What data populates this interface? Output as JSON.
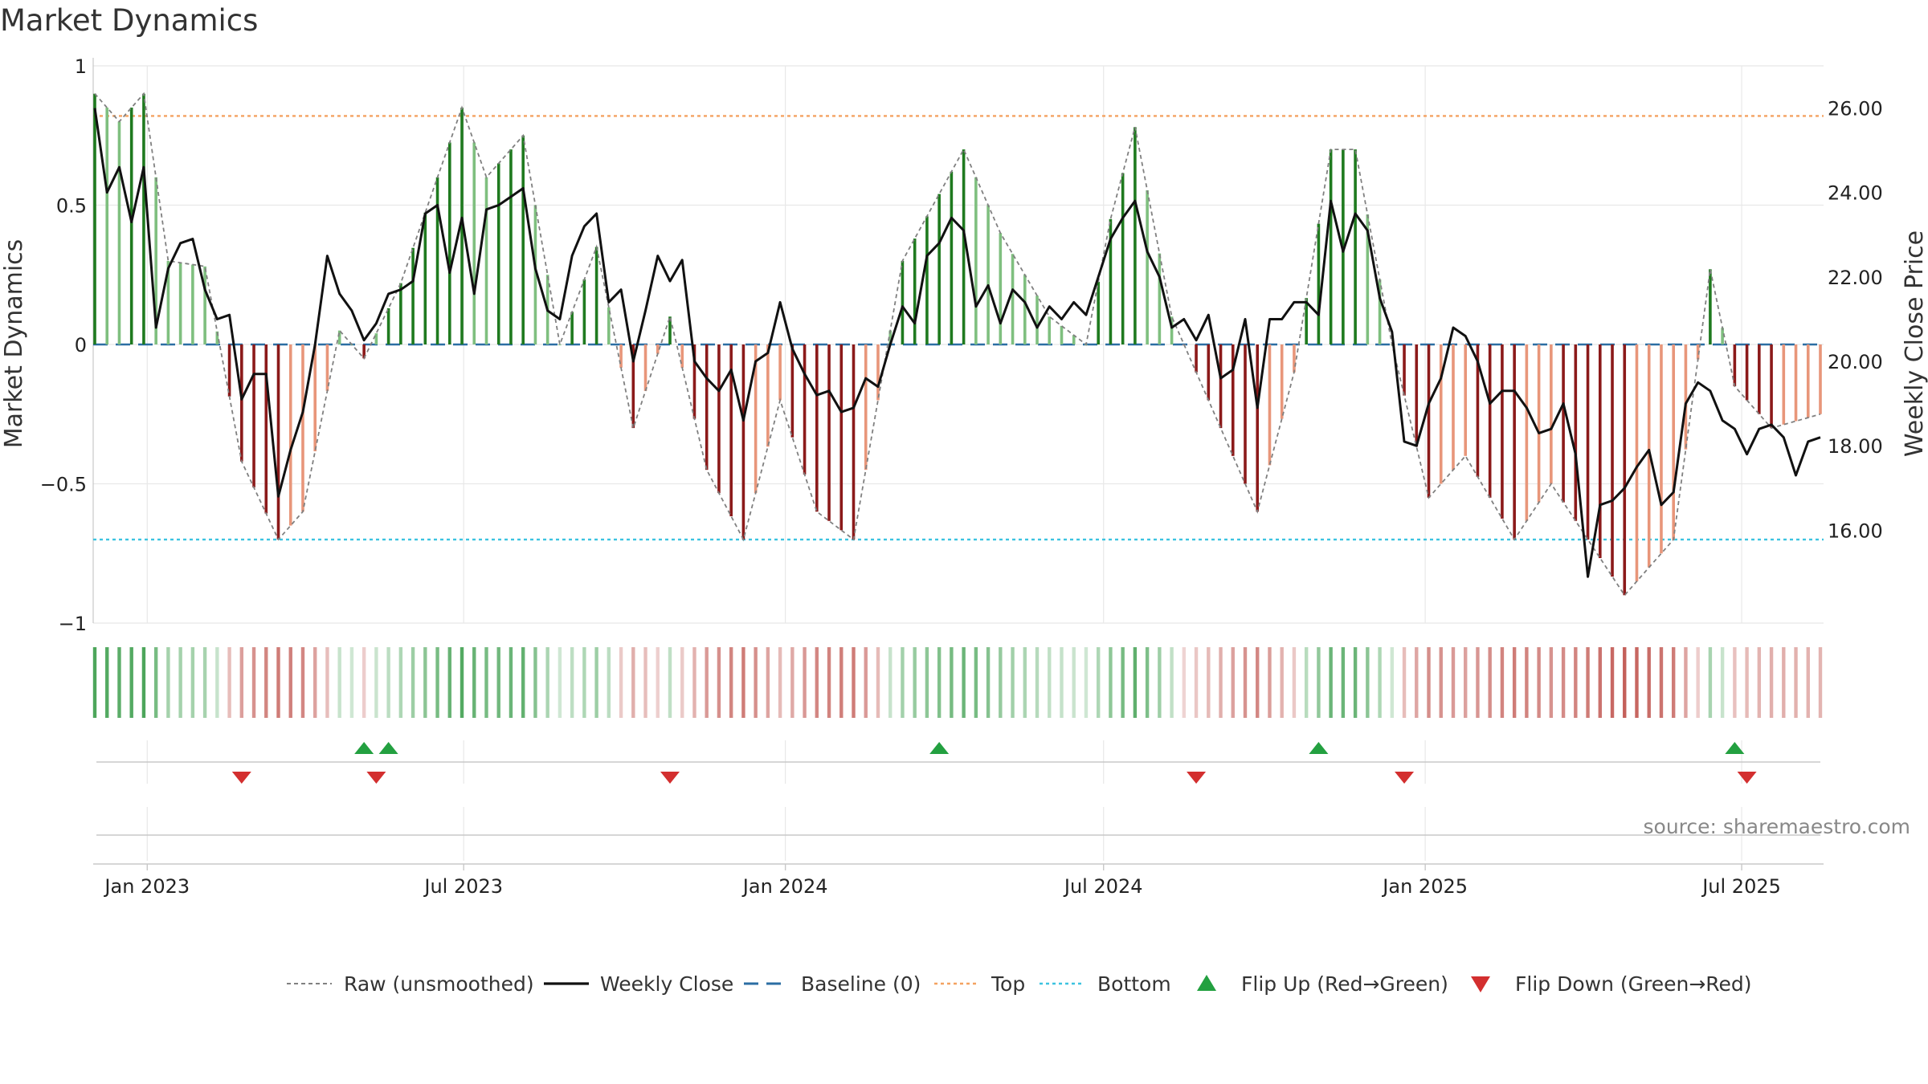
{
  "chart_data": {
    "type": "bar",
    "title": "Market Dynamics",
    "source": "source: sharemaestro.com",
    "left_axis": {
      "label": "Market Dynamics",
      "ylim": [
        -1.0,
        1.0
      ],
      "ticks": [
        1,
        0.5,
        0,
        -0.5,
        -1
      ],
      "tick_labels": [
        "1",
        "0.5",
        "0",
        "−0.5",
        "−1"
      ]
    },
    "right_axis": {
      "label": "Weekly Close Price",
      "ylim": [
        13.8,
        27.0
      ],
      "ticks": [
        26,
        24,
        22,
        20,
        18,
        16
      ],
      "tick_labels": [
        "26.00",
        "24.00",
        "22.00",
        "20.00",
        "18.00",
        "16.00"
      ]
    },
    "x_axis": {
      "start": "2022-12-02",
      "end": "2025-08-15",
      "ticks": [
        "2023-01-01",
        "2023-07-01",
        "2024-01-01",
        "2024-07-01",
        "2025-01-01",
        "2025-07-01"
      ],
      "tick_labels": [
        "Jan 2023",
        "Jul 2023",
        "Jan 2024",
        "Jul 2024",
        "Jan 2025",
        "Jul 2025"
      ]
    },
    "levels": {
      "baseline": 0,
      "top": 0.82,
      "bottom": -0.7
    },
    "weekly_close_anchors": [
      [
        "2022-12-02",
        26.0
      ],
      [
        "2022-12-09",
        24.0
      ],
      [
        "2022-12-16",
        24.6
      ],
      [
        "2022-12-23",
        23.3
      ],
      [
        "2022-12-30",
        24.6
      ],
      [
        "2023-01-06",
        20.8
      ],
      [
        "2023-01-13",
        22.2
      ],
      [
        "2023-01-20",
        22.8
      ],
      [
        "2023-01-27",
        22.9
      ],
      [
        "2023-02-03",
        21.7
      ],
      [
        "2023-02-10",
        21.0
      ],
      [
        "2023-02-17",
        21.1
      ],
      [
        "2023-02-24",
        19.1
      ],
      [
        "2023-03-03",
        19.7
      ],
      [
        "2023-03-10",
        19.7
      ],
      [
        "2023-03-17",
        16.8
      ],
      [
        "2023-03-24",
        17.9
      ],
      [
        "2023-03-31",
        18.8
      ],
      [
        "2023-04-07",
        20.4
      ],
      [
        "2023-04-14",
        22.5
      ],
      [
        "2023-04-21",
        21.6
      ],
      [
        "2023-04-28",
        21.2
      ],
      [
        "2023-05-05",
        20.5
      ],
      [
        "2023-05-12",
        20.9
      ],
      [
        "2023-05-19",
        21.6
      ],
      [
        "2023-05-26",
        21.7
      ],
      [
        "2023-06-02",
        21.9
      ],
      [
        "2023-06-09",
        23.5
      ],
      [
        "2023-06-16",
        23.7
      ],
      [
        "2023-06-23",
        22.1
      ],
      [
        "2023-06-30",
        23.4
      ],
      [
        "2023-07-07",
        21.6
      ],
      [
        "2023-07-14",
        23.6
      ],
      [
        "2023-07-21",
        23.7
      ],
      [
        "2023-07-28",
        23.9
      ],
      [
        "2023-08-04",
        24.1
      ],
      [
        "2023-08-11",
        22.2
      ],
      [
        "2023-08-18",
        21.2
      ],
      [
        "2023-08-25",
        21.0
      ],
      [
        "2023-09-01",
        22.5
      ],
      [
        "2023-09-08",
        23.2
      ],
      [
        "2023-09-15",
        23.5
      ],
      [
        "2023-09-22",
        21.4
      ],
      [
        "2023-09-29",
        21.7
      ],
      [
        "2023-10-06",
        20.0
      ],
      [
        "2023-10-13",
        21.2
      ],
      [
        "2023-10-20",
        22.5
      ],
      [
        "2023-10-27",
        21.9
      ],
      [
        "2023-11-03",
        22.4
      ],
      [
        "2023-11-10",
        20.0
      ],
      [
        "2023-11-17",
        19.6
      ],
      [
        "2023-11-24",
        19.3
      ],
      [
        "2023-12-01",
        19.8
      ],
      [
        "2023-12-08",
        18.6
      ],
      [
        "2023-12-15",
        20.0
      ],
      [
        "2023-12-22",
        20.2
      ],
      [
        "2023-12-29",
        21.4
      ],
      [
        "2024-01-05",
        20.3
      ],
      [
        "2024-01-12",
        19.7
      ],
      [
        "2024-01-19",
        19.2
      ],
      [
        "2024-01-26",
        19.3
      ],
      [
        "2024-02-02",
        18.8
      ],
      [
        "2024-02-09",
        18.9
      ],
      [
        "2024-02-16",
        19.6
      ],
      [
        "2024-02-23",
        19.4
      ],
      [
        "2024-03-01",
        20.4
      ],
      [
        "2024-03-08",
        21.3
      ],
      [
        "2024-03-15",
        20.9
      ],
      [
        "2024-03-22",
        22.5
      ],
      [
        "2024-03-29",
        22.8
      ],
      [
        "2024-04-05",
        23.4
      ],
      [
        "2024-04-12",
        23.1
      ],
      [
        "2024-04-19",
        21.3
      ],
      [
        "2024-04-26",
        21.8
      ],
      [
        "2024-05-03",
        20.9
      ],
      [
        "2024-05-10",
        21.7
      ],
      [
        "2024-05-17",
        21.4
      ],
      [
        "2024-05-24",
        20.8
      ],
      [
        "2024-05-31",
        21.3
      ],
      [
        "2024-06-07",
        21.0
      ],
      [
        "2024-06-14",
        21.4
      ],
      [
        "2024-06-21",
        21.1
      ],
      [
        "2024-06-28",
        22.0
      ],
      [
        "2024-07-05",
        22.9
      ],
      [
        "2024-07-12",
        23.4
      ],
      [
        "2024-07-19",
        23.8
      ],
      [
        "2024-07-26",
        22.6
      ],
      [
        "2024-08-02",
        22.0
      ],
      [
        "2024-08-09",
        20.8
      ],
      [
        "2024-08-16",
        21.0
      ],
      [
        "2024-08-23",
        20.5
      ],
      [
        "2024-08-30",
        21.1
      ],
      [
        "2024-09-06",
        19.6
      ],
      [
        "2024-09-13",
        19.8
      ],
      [
        "2024-09-20",
        21.0
      ],
      [
        "2024-09-27",
        18.9
      ],
      [
        "2024-10-04",
        21.0
      ],
      [
        "2024-10-11",
        21.0
      ],
      [
        "2024-10-18",
        21.4
      ],
      [
        "2024-10-25",
        21.4
      ],
      [
        "2024-11-01",
        21.1
      ],
      [
        "2024-11-08",
        23.8
      ],
      [
        "2024-11-15",
        22.6
      ],
      [
        "2024-11-22",
        23.5
      ],
      [
        "2024-11-29",
        23.1
      ],
      [
        "2024-12-06",
        21.5
      ],
      [
        "2024-12-13",
        20.7
      ],
      [
        "2024-12-20",
        18.1
      ],
      [
        "2024-12-27",
        18.0
      ],
      [
        "2025-01-03",
        19.0
      ],
      [
        "2025-01-10",
        19.6
      ],
      [
        "2025-01-17",
        20.8
      ],
      [
        "2025-01-24",
        20.6
      ],
      [
        "2025-01-31",
        20.0
      ],
      [
        "2025-02-07",
        19.0
      ],
      [
        "2025-02-14",
        19.3
      ],
      [
        "2025-02-21",
        19.3
      ],
      [
        "2025-02-28",
        18.9
      ],
      [
        "2025-03-07",
        18.3
      ],
      [
        "2025-03-14",
        18.4
      ],
      [
        "2025-03-21",
        19.0
      ],
      [
        "2025-03-28",
        17.8
      ],
      [
        "2025-04-04",
        14.9
      ],
      [
        "2025-04-11",
        16.6
      ],
      [
        "2025-04-18",
        16.7
      ],
      [
        "2025-04-25",
        17.0
      ],
      [
        "2025-05-02",
        17.5
      ],
      [
        "2025-05-09",
        17.9
      ],
      [
        "2025-05-16",
        16.6
      ],
      [
        "2025-05-23",
        16.9
      ],
      [
        "2025-05-30",
        19.0
      ],
      [
        "2025-06-06",
        19.5
      ],
      [
        "2025-06-13",
        19.3
      ],
      [
        "2025-06-20",
        18.6
      ],
      [
        "2025-06-27",
        18.4
      ],
      [
        "2025-07-04",
        17.8
      ],
      [
        "2025-07-11",
        18.4
      ],
      [
        "2025-07-18",
        18.5
      ],
      [
        "2025-07-25",
        18.2
      ],
      [
        "2025-08-01",
        17.3
      ],
      [
        "2025-08-08",
        18.1
      ],
      [
        "2025-08-15",
        18.2
      ]
    ],
    "raw_anchors": [
      [
        "2022-12-02",
        0.9
      ],
      [
        "2022-12-16",
        0.8
      ],
      [
        "2022-12-30",
        0.9
      ],
      [
        "2023-01-13",
        0.3
      ],
      [
        "2023-02-03",
        0.28
      ],
      [
        "2023-02-24",
        -0.42
      ],
      [
        "2023-03-17",
        -0.7
      ],
      [
        "2023-03-31",
        -0.6
      ],
      [
        "2023-04-21",
        0.05
      ],
      [
        "2023-05-05",
        -0.05
      ],
      [
        "2023-05-26",
        0.22
      ],
      [
        "2023-06-16",
        0.6
      ],
      [
        "2023-06-30",
        0.85
      ],
      [
        "2023-07-14",
        0.6
      ],
      [
        "2023-08-04",
        0.75
      ],
      [
        "2023-08-25",
        0.0
      ],
      [
        "2023-09-15",
        0.35
      ],
      [
        "2023-10-06",
        -0.3
      ],
      [
        "2023-10-27",
        0.1
      ],
      [
        "2023-11-17",
        -0.45
      ],
      [
        "2023-12-08",
        -0.7
      ],
      [
        "2023-12-29",
        -0.2
      ],
      [
        "2024-01-19",
        -0.6
      ],
      [
        "2024-02-09",
        -0.7
      ],
      [
        "2024-03-08",
        0.3
      ],
      [
        "2024-04-12",
        0.7
      ],
      [
        "2024-05-03",
        0.4
      ],
      [
        "2024-05-31",
        0.1
      ],
      [
        "2024-06-21",
        0.0
      ],
      [
        "2024-07-05",
        0.45
      ],
      [
        "2024-07-19",
        0.78
      ],
      [
        "2024-08-09",
        0.1
      ],
      [
        "2024-08-30",
        -0.2
      ],
      [
        "2024-09-27",
        -0.6
      ],
      [
        "2024-10-18",
        -0.1
      ],
      [
        "2024-11-08",
        0.7
      ],
      [
        "2024-11-22",
        0.7
      ],
      [
        "2024-12-13",
        0.0
      ],
      [
        "2025-01-03",
        -0.55
      ],
      [
        "2025-01-24",
        -0.4
      ],
      [
        "2025-02-21",
        -0.7
      ],
      [
        "2025-03-14",
        -0.5
      ],
      [
        "2025-04-04",
        -0.7
      ],
      [
        "2025-04-25",
        -0.9
      ],
      [
        "2025-05-23",
        -0.7
      ],
      [
        "2025-06-13",
        0.27
      ],
      [
        "2025-06-27",
        -0.15
      ],
      [
        "2025-07-18",
        -0.3
      ],
      [
        "2025-08-15",
        -0.25
      ]
    ],
    "flip_up": [
      "2023-05-05",
      "2023-05-19",
      "2024-03-29",
      "2024-11-01",
      "2025-06-27"
    ],
    "flip_down": [
      "2023-02-24",
      "2023-05-12",
      "2023-10-27",
      "2024-08-23",
      "2024-12-20",
      "2025-07-04"
    ],
    "legend": [
      {
        "key": "raw",
        "label": "Raw (unsmoothed)"
      },
      {
        "key": "close",
        "label": "Weekly Close"
      },
      {
        "key": "baseline",
        "label": "Baseline (0)"
      },
      {
        "key": "top",
        "label": "Top"
      },
      {
        "key": "bottom",
        "label": "Bottom"
      },
      {
        "key": "flipup",
        "label": "Flip Up (Red→Green)"
      },
      {
        "key": "flipdown",
        "label": "Flip Down (Green→Red)"
      }
    ],
    "colors": {
      "green_dark": "#1f7a1f",
      "green_light": "#7fbf7f",
      "red_dark": "#8b1a1a",
      "red_light": "#e8967a",
      "raw": "#808080",
      "close": "#111111",
      "baseline": "#2b6ea3",
      "top": "#f4a261",
      "bottom": "#3cc3e0",
      "flip_up": "#23a040",
      "flip_down": "#d32f2f",
      "grid": "#e8e8e8",
      "axis": "#c8c8c8"
    }
  }
}
